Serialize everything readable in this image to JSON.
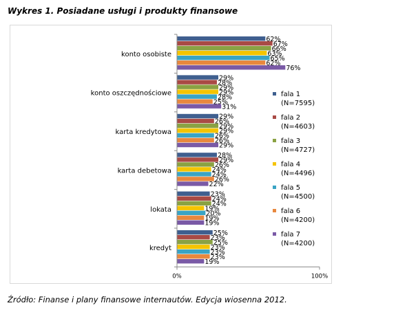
{
  "title": "Wykres 1. Posiadane usługi i produkty finansowe",
  "source": "Źródło: Finanse i plany finansowe internautów. Edycja wiosenna 2012.",
  "chart_data": {
    "type": "bar",
    "orientation": "horizontal",
    "title": "",
    "xlabel": "",
    "ylabel": "",
    "xlim": [
      0,
      100
    ],
    "x_ticks": [
      "0%",
      "100%"
    ],
    "legend_position": "right",
    "grid": false,
    "categories": [
      "konto osobiste",
      "konto oszczędnościowe",
      "karta kredytowa",
      "karta debetowa",
      "lokata",
      "kredyt"
    ],
    "series": [
      {
        "name": "fala 1",
        "sample": "(N=7595)",
        "color": "#3f5f8f",
        "values": [
          62,
          29,
          29,
          28,
          23,
          25
        ]
      },
      {
        "name": "fala 2",
        "sample": "(N=4603)",
        "color": "#a94a45",
        "values": [
          67,
          28,
          26,
          29,
          24,
          23
        ]
      },
      {
        "name": "fala 3",
        "sample": "(N=4727)",
        "color": "#8aa243",
        "values": [
          66,
          29,
          29,
          26,
          24,
          25
        ]
      },
      {
        "name": "fala 4",
        "sample": "(N=4496)",
        "color": "#f5c400",
        "values": [
          63,
          29,
          29,
          24,
          19,
          23
        ]
      },
      {
        "name": "fala 5",
        "sample": "(N=4500)",
        "color": "#3aa4c4",
        "values": [
          65,
          28,
          26,
          24,
          20,
          23
        ]
      },
      {
        "name": "fala 6",
        "sample": "(N=4200)",
        "color": "#e8883e",
        "values": [
          62,
          25,
          26,
          26,
          19,
          23
        ]
      },
      {
        "name": "fala 7",
        "sample": "(N=4200)",
        "color": "#7a5aa6",
        "values": [
          76,
          31,
          29,
          22,
          19,
          19
        ]
      }
    ]
  }
}
